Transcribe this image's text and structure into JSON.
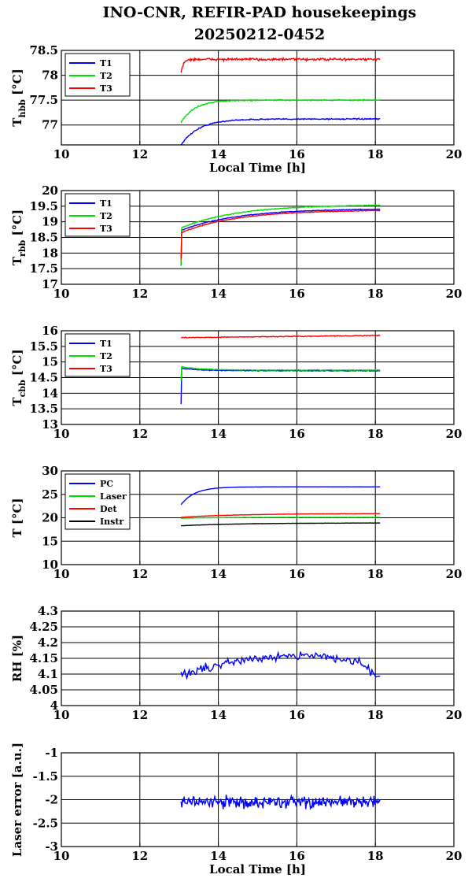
{
  "title": "INO-CNR, REFIR-PAD housekeepings",
  "subtitle": "20250212-0452",
  "chart_data": [
    {
      "type": "line",
      "ylabel": "T",
      "ylabel_sub": "hbb",
      "ylabel_unit": " [°C]",
      "xlabel": "Local Time [h]",
      "xlim": [
        10,
        20
      ],
      "ylim": [
        76.6,
        78.5
      ],
      "xticks": [
        10,
        12,
        14,
        16,
        18,
        20
      ],
      "yticks": [
        77,
        77.5,
        78,
        78.5
      ],
      "grid": true,
      "legend_placement": "top-left",
      "series": [
        {
          "name": "T1",
          "color": "#0000ff",
          "shape": "rise",
          "start": 76.6,
          "end": 77.12,
          "tau": 0.45,
          "noise": 0.02
        },
        {
          "name": "T2",
          "color": "#00dd00",
          "shape": "rise",
          "start": 77.05,
          "end": 77.5,
          "tau": 0.35,
          "noise": 0.02
        },
        {
          "name": "T3",
          "color": "#ff0000",
          "shape": "rise",
          "start": 78.05,
          "end": 78.32,
          "tau": 0.06,
          "noise": 0.04
        }
      ]
    },
    {
      "type": "line",
      "ylabel": "T",
      "ylabel_sub": "rbb",
      "ylabel_unit": " [°C]",
      "xlabel": "",
      "xlim": [
        10,
        20
      ],
      "ylim": [
        17,
        20
      ],
      "xticks": [
        10,
        12,
        14,
        16,
        18,
        20
      ],
      "yticks": [
        17,
        17.5,
        18,
        18.5,
        19,
        19.5,
        20
      ],
      "grid": true,
      "legend_placement": "top-left",
      "series": [
        {
          "name": "T1",
          "color": "#0000ff",
          "shape": "spike",
          "start": 17.6,
          "s0": 18.72,
          "end": 19.42,
          "tau": 1.4,
          "noise": 0.02
        },
        {
          "name": "T2",
          "color": "#00dd00",
          "shape": "spike",
          "start": 17.6,
          "s0": 18.8,
          "end": 19.55,
          "tau": 1.4,
          "noise": 0.02
        },
        {
          "name": "T3",
          "color": "#ff0000",
          "shape": "spike",
          "start": 17.8,
          "s0": 18.65,
          "end": 19.38,
          "tau": 1.4,
          "noise": 0.02
        }
      ]
    },
    {
      "type": "line",
      "ylabel": "T",
      "ylabel_sub": "cbb",
      "ylabel_unit": " [°C]",
      "xlabel": "",
      "xlim": [
        10,
        20
      ],
      "ylim": [
        13,
        16
      ],
      "xticks": [
        10,
        12,
        14,
        16,
        18,
        20
      ],
      "yticks": [
        13,
        13.5,
        14,
        14.5,
        15,
        15.5,
        16
      ],
      "grid": true,
      "legend_placement": "top-left",
      "series": [
        {
          "name": "T1",
          "color": "#0000ff",
          "shape": "spike",
          "start": 13.65,
          "s0": 14.8,
          "end": 14.72,
          "tau": 0.5,
          "noise": 0.02
        },
        {
          "name": "T2",
          "color": "#00dd00",
          "shape": "spike",
          "start": 14.4,
          "s0": 14.85,
          "end": 14.74,
          "tau": 0.5,
          "noise": 0.02
        },
        {
          "name": "T3",
          "color": "#ff0000",
          "shape": "flat",
          "start": 15.78,
          "end": 15.85,
          "noise": 0.02
        }
      ]
    },
    {
      "type": "line",
      "ylabel": "T [°C]",
      "ylabel_sub": "",
      "ylabel_unit": "",
      "xlabel": "",
      "xlim": [
        10,
        20
      ],
      "ylim": [
        10,
        30
      ],
      "xticks": [
        10,
        12,
        14,
        16,
        18,
        20
      ],
      "yticks": [
        10,
        15,
        20,
        25,
        30
      ],
      "grid": true,
      "legend_placement": "top-left",
      "series": [
        {
          "name": "PC",
          "color": "#0000ff",
          "shape": "rise",
          "start": 22.8,
          "end": 26.6,
          "tau": 0.35,
          "noise": 0.03
        },
        {
          "name": "Laser",
          "color": "#00dd00",
          "shape": "rise",
          "start": 19.9,
          "end": 20.1,
          "tau": 1.0,
          "noise": 0.05
        },
        {
          "name": "Det",
          "color": "#ff0000",
          "shape": "rise",
          "start": 20.1,
          "end": 20.9,
          "tau": 1.5,
          "noise": 0.05
        },
        {
          "name": "Instr",
          "color": "#000000",
          "shape": "rise",
          "start": 18.3,
          "end": 18.9,
          "tau": 1.5,
          "noise": 0.05
        }
      ]
    },
    {
      "type": "line",
      "ylabel": "RH [%]",
      "ylabel_sub": "",
      "ylabel_unit": "",
      "xlabel": "",
      "xlim": [
        10,
        20
      ],
      "ylim": [
        4,
        4.3
      ],
      "xticks": [
        10,
        12,
        14,
        16,
        18,
        20
      ],
      "yticks": [
        4,
        4.05,
        4.1,
        4.15,
        4.2,
        4.25,
        4.3
      ],
      "grid": true,
      "legend_placement": "none",
      "series": [
        {
          "name": "",
          "color": "#0000ff",
          "shape": "humid",
          "start": 4.17,
          "end": 4.04,
          "noise": 0.022
        }
      ]
    },
    {
      "type": "line",
      "ylabel": "Laser error [a.u.]",
      "ylabel_sub": "",
      "ylabel_unit": "",
      "xlabel": "Local Time [h]",
      "xlim": [
        10,
        20
      ],
      "ylim": [
        -3,
        -1
      ],
      "xticks": [
        10,
        12,
        14,
        16,
        18,
        20
      ],
      "yticks": [
        -3,
        -2.5,
        -2,
        -1.5,
        -1
      ],
      "grid": true,
      "legend_placement": "none",
      "series": [
        {
          "name": "",
          "color": "#0000ff",
          "shape": "flat",
          "start": -2.05,
          "end": -2.05,
          "noise": 0.22
        }
      ]
    }
  ]
}
